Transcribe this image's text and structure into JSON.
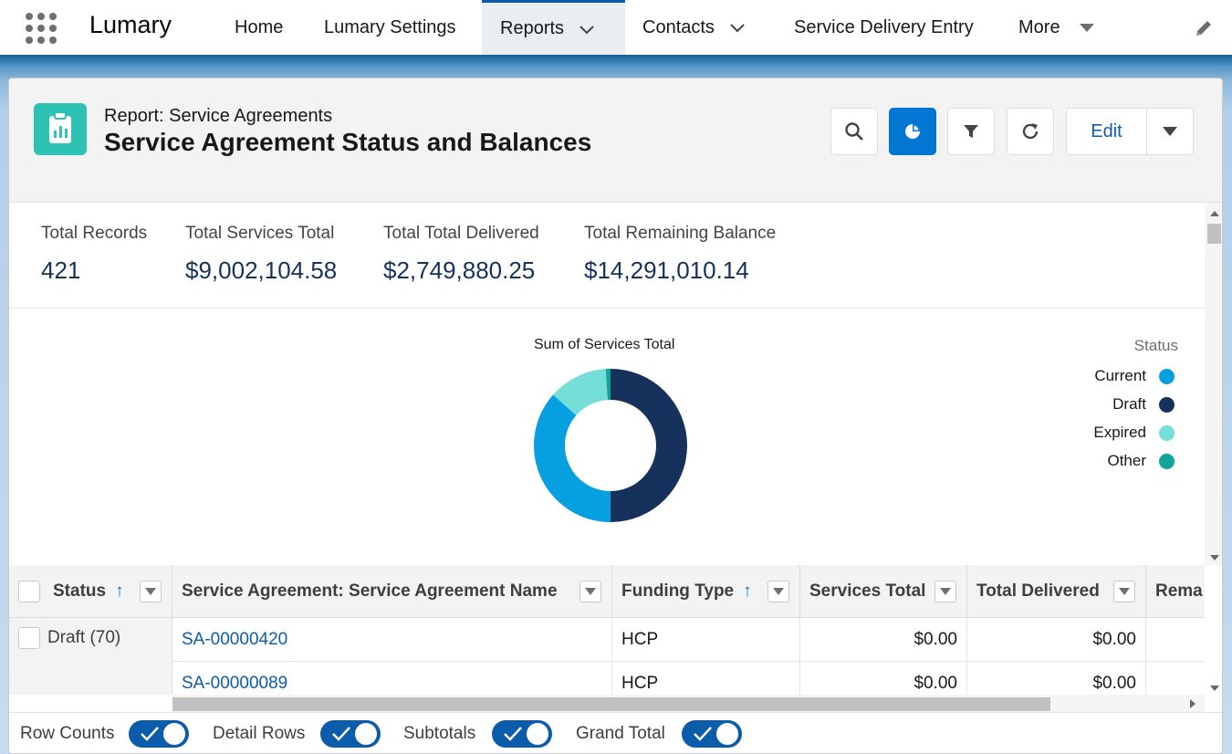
{
  "nav": {
    "app_name": "Lumary",
    "items": [
      {
        "label": "Home"
      },
      {
        "label": "Lumary Settings"
      },
      {
        "label": "Reports"
      },
      {
        "label": "Contacts"
      },
      {
        "label": "Service Delivery Entry"
      },
      {
        "label": "More"
      }
    ],
    "active_item": "Reports"
  },
  "report": {
    "kicker": "Report: Service Agreements",
    "title": "Service Agreement Status and Balances",
    "edit_label": "Edit"
  },
  "summary": [
    {
      "label": "Total Records",
      "value": "421"
    },
    {
      "label": "Total Services Total",
      "value": "$9,002,104.58"
    },
    {
      "label": "Total Total Delivered",
      "value": "$2,749,880.25"
    },
    {
      "label": "Total Remaining Balance",
      "value": "$14,291,010.14"
    }
  ],
  "chart_data": {
    "type": "pie",
    "title": "Sum of Services Total",
    "legend_title": "Status",
    "legend_position": "right",
    "categories": [
      "Current",
      "Draft",
      "Expired",
      "Other"
    ],
    "colors": [
      "#06a0e0",
      "#16325c",
      "#76ded9",
      "#0fa598"
    ],
    "values": [
      0.365,
      0.5,
      0.125,
      0.01
    ],
    "donut": true
  },
  "table": {
    "headers": [
      {
        "label": "Status",
        "sort": "↑"
      },
      {
        "label": "Service Agreement: Service Agreement Name",
        "sort": ""
      },
      {
        "label": "Funding Type",
        "sort": "↑"
      },
      {
        "label": "Services Total",
        "sort": ""
      },
      {
        "label": "Total Delivered",
        "sort": ""
      },
      {
        "label": "Rema",
        "sort": ""
      }
    ],
    "group_label": "Draft (70)",
    "rows": [
      {
        "name": "SA-00000420",
        "funding": "HCP",
        "services_total": "$0.00",
        "total_delivered": "$0.00"
      },
      {
        "name": "SA-00000089",
        "funding": "HCP",
        "services_total": "$0.00",
        "total_delivered": "$0.00"
      }
    ]
  },
  "footer": {
    "toggles": [
      {
        "label": "Row Counts",
        "on": true
      },
      {
        "label": "Detail Rows",
        "on": true
      },
      {
        "label": "Subtotals",
        "on": true
      },
      {
        "label": "Grand Total",
        "on": true
      }
    ]
  }
}
